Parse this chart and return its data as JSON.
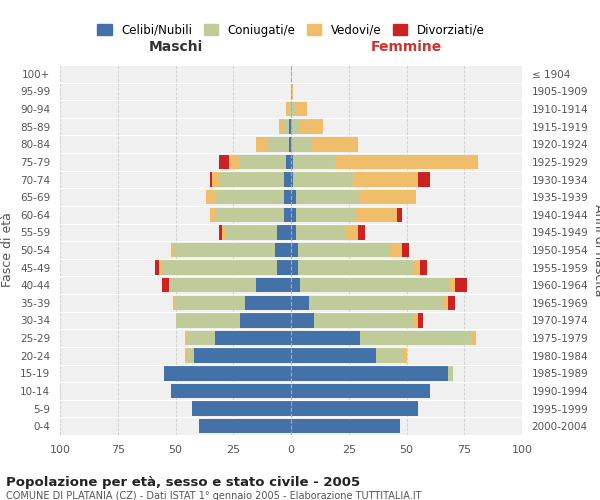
{
  "age_groups": [
    "100+",
    "95-99",
    "90-94",
    "85-89",
    "80-84",
    "75-79",
    "70-74",
    "65-69",
    "60-64",
    "55-59",
    "50-54",
    "45-49",
    "40-44",
    "35-39",
    "30-34",
    "25-29",
    "20-24",
    "15-19",
    "10-14",
    "5-9",
    "0-4"
  ],
  "birth_years": [
    "≤ 1904",
    "1905-1909",
    "1910-1914",
    "1915-1919",
    "1920-1924",
    "1925-1929",
    "1930-1934",
    "1935-1939",
    "1940-1944",
    "1945-1949",
    "1950-1954",
    "1955-1959",
    "1960-1964",
    "1965-1969",
    "1970-1974",
    "1975-1979",
    "1980-1984",
    "1985-1989",
    "1990-1994",
    "1995-1999",
    "2000-2004"
  ],
  "colors": {
    "celibe": "#4472A8",
    "coniugato": "#BFCC99",
    "vedovo": "#F0BE6A",
    "divorziato": "#CC2222"
  },
  "maschi": {
    "celibe": [
      0,
      0,
      0,
      1,
      1,
      2,
      3,
      3,
      3,
      6,
      7,
      6,
      15,
      20,
      22,
      33,
      42,
      55,
      52,
      43,
      40
    ],
    "coniugato": [
      0,
      0,
      1,
      2,
      9,
      20,
      28,
      30,
      30,
      22,
      44,
      50,
      38,
      30,
      28,
      12,
      3,
      0,
      0,
      0,
      0
    ],
    "vedovo": [
      0,
      0,
      1,
      2,
      5,
      5,
      3,
      4,
      2,
      2,
      1,
      1,
      0,
      1,
      0,
      1,
      1,
      0,
      0,
      0,
      0
    ],
    "divorziato": [
      0,
      0,
      0,
      0,
      0,
      4,
      1,
      0,
      0,
      1,
      0,
      2,
      3,
      0,
      0,
      0,
      0,
      0,
      0,
      0,
      0
    ]
  },
  "femmine": {
    "nubile": [
      0,
      0,
      0,
      0,
      0,
      1,
      1,
      2,
      2,
      2,
      3,
      3,
      4,
      8,
      10,
      30,
      37,
      68,
      60,
      55,
      47
    ],
    "coniugata": [
      0,
      0,
      2,
      4,
      9,
      18,
      26,
      28,
      26,
      22,
      40,
      50,
      65,
      58,
      43,
      48,
      12,
      2,
      0,
      0,
      0
    ],
    "vedova": [
      0,
      1,
      5,
      10,
      20,
      62,
      28,
      24,
      18,
      5,
      5,
      3,
      2,
      2,
      2,
      2,
      1,
      0,
      0,
      0,
      0
    ],
    "divorziata": [
      0,
      0,
      0,
      0,
      0,
      0,
      5,
      0,
      2,
      3,
      3,
      3,
      5,
      3,
      2,
      0,
      0,
      0,
      0,
      0,
      0
    ]
  },
  "title1": "Popolazione per età, sesso e stato civile - 2005",
  "title2": "COMUNE DI PLATANIA (CZ) - Dati ISTAT 1° gennaio 2005 - Elaborazione TUTTITALIA.IT",
  "xlabel_left": "Maschi",
  "xlabel_right": "Femmine",
  "ylabel_left": "Fasce di età",
  "ylabel_right": "Anni di nascita",
  "xlim": 100,
  "legend_labels": [
    "Celibi/Nubili",
    "Coniugati/e",
    "Vedovi/e",
    "Divorziati/e"
  ],
  "bg_color": "#FFFFFF",
  "plot_bg": "#F0F0F0",
  "grid_color": "#CCCCCC"
}
